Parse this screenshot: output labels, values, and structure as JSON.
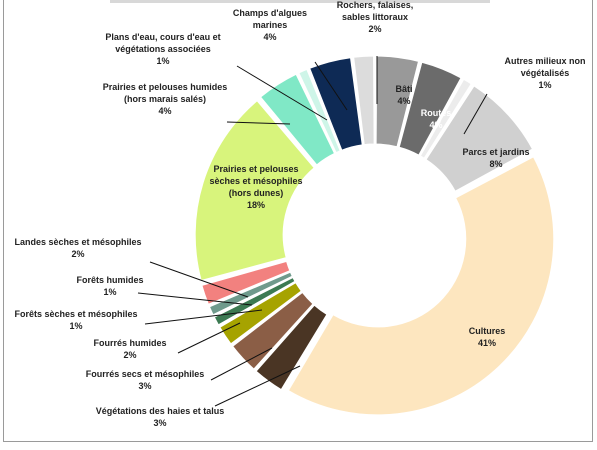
{
  "chart_data": {
    "type": "donut",
    "title": "",
    "unit": "%",
    "slices": [
      {
        "name": "Bâti",
        "lines": [
          "Bâti"
        ],
        "value": 4,
        "color": "#999999",
        "inside": true
      },
      {
        "name": "Routes",
        "lines": [
          "Routes"
        ],
        "value": 4,
        "color": "#6b6b6b",
        "inside": true
      },
      {
        "name": "Autres milieux non végétalisés",
        "lines": [
          "Autres milieux non",
          "végétalisés"
        ],
        "value": 1,
        "color": "#ececec",
        "inside": false
      },
      {
        "name": "Parcs et jardins",
        "lines": [
          "Parcs et jardins"
        ],
        "value": 8,
        "color": "#d0d0d0",
        "inside": true
      },
      {
        "name": "Cultures",
        "lines": [
          "Cultures"
        ],
        "value": 41,
        "color": "#fde6bf",
        "inside": true
      },
      {
        "name": "Végétations des haies et talus",
        "lines": [
          "Végétations des haies et talus"
        ],
        "value": 3,
        "color": "#4a3524",
        "inside": false
      },
      {
        "name": "Fourrés secs et mésophiles",
        "lines": [
          "Fourrés secs et mésophiles"
        ],
        "value": 3,
        "color": "#8b5e46",
        "inside": false
      },
      {
        "name": "Fourrés humides",
        "lines": [
          "Fourrés humides"
        ],
        "value": 2,
        "color": "#a6a300",
        "inside": false
      },
      {
        "name": "Forêts sèches et mésophiles",
        "lines": [
          "Forêts sèches et mésophiles"
        ],
        "value": 1,
        "color": "#3c7a52",
        "inside": false
      },
      {
        "name": "Forêts humides",
        "lines": [
          "Forêts humides"
        ],
        "value": 1,
        "color": "#6f9a8c",
        "inside": false
      },
      {
        "name": "Landes sèches et mésophiles",
        "lines": [
          "Landes sèches et mésophiles"
        ],
        "value": 2,
        "color": "#f2817f",
        "inside": false
      },
      {
        "name": "Prairies et pelouses sèches et mésophiles (hors dunes)",
        "lines": [
          "Prairies et pelouses",
          "sèches et mésophiles",
          "(hors dunes)"
        ],
        "value": 18,
        "color": "#d8f47c",
        "inside": true
      },
      {
        "name": "Prairies et pelouses humides (hors marais salés)",
        "lines": [
          "Prairies et pelouses humides",
          "(hors marais salés)"
        ],
        "value": 4,
        "color": "#80e8c6",
        "inside": false
      },
      {
        "name": "Plans d'eau, cours d'eau et végétations associées",
        "lines": [
          "Plans d'eau, cours d'eau et",
          "végétations associées"
        ],
        "value": 1,
        "color": "#cef5e8",
        "inside": false
      },
      {
        "name": "Champs d'algues marines",
        "lines": [
          "Champs d'algues",
          "marines"
        ],
        "value": 4,
        "color": "#0e2a55",
        "inside": false
      },
      {
        "name": "Rochers, falaises, sables littoraux",
        "lines": [
          "Rochers, falaises,",
          "sables littoraux"
        ],
        "value": 2,
        "color": "#dcdcdc",
        "inside": false
      }
    ]
  }
}
